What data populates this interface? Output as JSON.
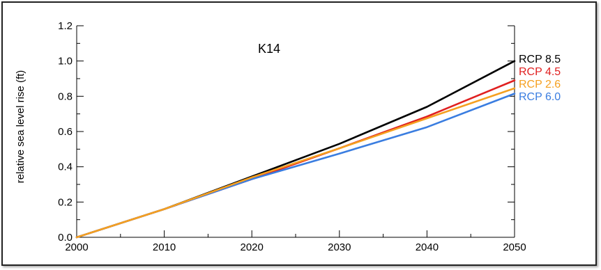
{
  "chart_data": {
    "type": "line",
    "title": "K14",
    "xlabel": "",
    "ylabel": "relative sea level rise (ft)",
    "xlim": [
      2000,
      2050
    ],
    "ylim": [
      0,
      1.2
    ],
    "x_ticks": [
      2000,
      2010,
      2020,
      2030,
      2040,
      2050
    ],
    "y_ticks": [
      0.0,
      0.2,
      0.4,
      0.6,
      0.8,
      1.0,
      1.2
    ],
    "y_tick_labels": [
      "0.0",
      "0.2",
      "0.4",
      "0.6",
      "0.8",
      "1.0",
      "1.2"
    ],
    "grid": false,
    "legend": "right, labels at line ends",
    "series": [
      {
        "name": "RCP 8.5",
        "color": "#000000",
        "x": [
          2000,
          2010,
          2020,
          2030,
          2040,
          2050
        ],
        "y": [
          0.0,
          0.16,
          0.345,
          0.53,
          0.74,
          1.0
        ]
      },
      {
        "name": "RCP 4.5",
        "color": "#e02020",
        "x": [
          2000,
          2010,
          2020,
          2030,
          2040,
          2050
        ],
        "y": [
          0.0,
          0.16,
          0.33,
          0.505,
          0.685,
          0.89
        ]
      },
      {
        "name": "RCP 6.0",
        "color": "#3a7de0",
        "x": [
          2000,
          2010,
          2020,
          2030,
          2040,
          2050
        ],
        "y": [
          0.0,
          0.16,
          0.33,
          0.475,
          0.625,
          0.815
        ]
      },
      {
        "name": "RCP 2.6",
        "color": "#f5a020",
        "x": [
          2000,
          2010,
          2020,
          2030,
          2040,
          2050
        ],
        "y": [
          0.0,
          0.16,
          0.34,
          0.505,
          0.675,
          0.845
        ]
      }
    ]
  }
}
